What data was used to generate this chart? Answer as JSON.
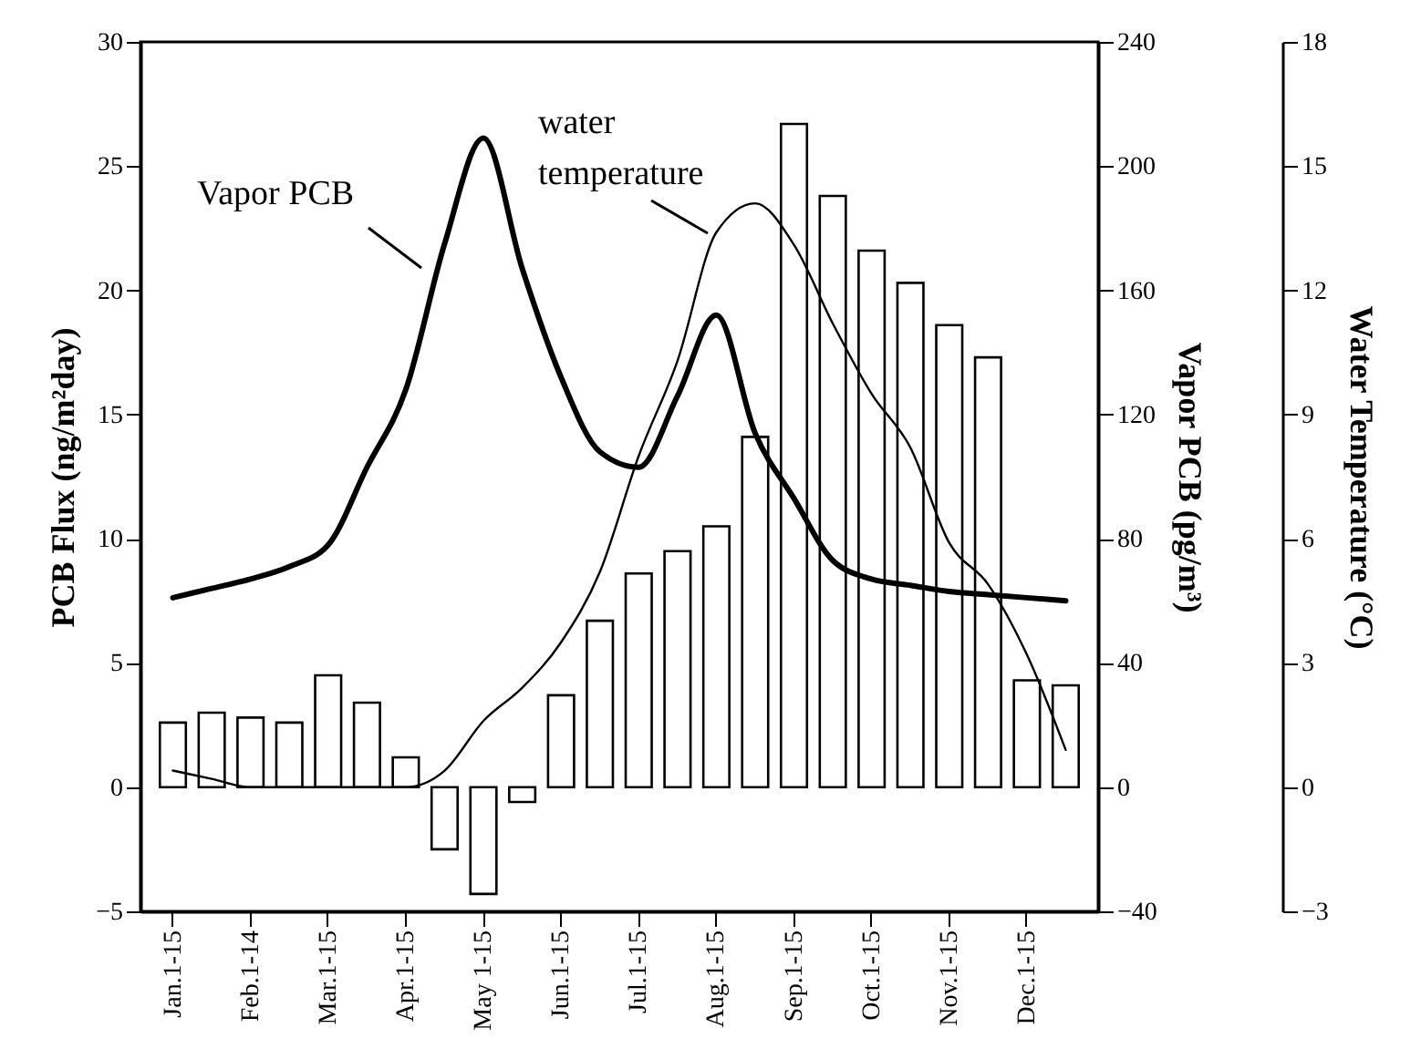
{
  "chart_data": {
    "type": "bar",
    "ylabel": "PCB Flux (ng/m²day)",
    "y2label": "Vapor PCB (pg/m³)",
    "y3label": "Water Temperature (°C)",
    "categories": [
      "Jan.1-15",
      null,
      "Feb.1-14",
      null,
      "Mar.1-15",
      null,
      "Apr.1-15",
      null,
      "May 1-15",
      null,
      "Jun.1-15",
      null,
      "Jul.1-15",
      null,
      "Aug.1-15",
      null,
      "Sep.1-15",
      null,
      "Oct.1-15",
      null,
      "Nov.1-15",
      null,
      "Dec.1-15",
      null
    ],
    "ylim": [
      -5,
      30
    ],
    "yticks": [
      -5,
      0,
      5,
      10,
      15,
      20,
      25,
      30
    ],
    "y2lim": [
      -40,
      240
    ],
    "y2ticks": [
      -40,
      0,
      40,
      80,
      120,
      160,
      200,
      240
    ],
    "y3lim": [
      -3,
      18
    ],
    "y3ticks": [
      -3,
      0,
      3,
      6,
      9,
      12,
      15,
      18
    ],
    "series": [
      {
        "color": "#ffffff",
        "values": [
          2.6,
          3.0,
          2.8,
          2.6,
          4.5,
          3.4,
          1.2,
          -2.5,
          -4.3,
          -0.6,
          3.7,
          6.7,
          8.6,
          9.5,
          10.5,
          14.1,
          26.7,
          23.8,
          21.6,
          20.3,
          18.6,
          17.3,
          4.3,
          4.1
        ]
      },
      {
        "type": "line",
        "name": "Vapor PCB",
        "axis": "y2",
        "color": "#000000",
        "values": [
          61,
          64,
          67,
          71,
          78,
          103,
          128,
          175,
          209,
          167,
          132,
          108,
          103,
          126,
          152,
          114,
          93,
          73,
          67,
          65,
          63,
          62,
          61,
          60
        ]
      },
      {
        "type": "line",
        "name": "water temperature",
        "axis": "y3",
        "color": "#000000",
        "values": [
          0.4,
          0.2,
          0,
          0,
          0,
          0,
          0,
          0.4,
          1.6,
          2.4,
          3.5,
          5.2,
          8.0,
          10.3,
          13.4,
          14.1,
          13.1,
          11.2,
          9.5,
          8.2,
          5.9,
          4.9,
          3.2,
          0.9
        ]
      }
    ],
    "grid": false,
    "marker": "none",
    "line_style": "solid"
  }
}
